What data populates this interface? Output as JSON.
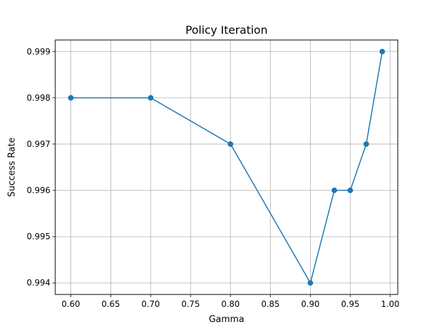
{
  "chart_data": {
    "type": "line",
    "title": "Policy Iteration",
    "xlabel": "Gamma",
    "ylabel": "Success Rate",
    "x": [
      0.6,
      0.7,
      0.8,
      0.9,
      0.93,
      0.95,
      0.97,
      0.99
    ],
    "series": [
      {
        "values": [
          0.998,
          0.998,
          0.997,
          0.994,
          0.996,
          0.996,
          0.997,
          0.999
        ]
      }
    ],
    "xlim": [
      0.5805,
      1.0095
    ],
    "ylim": [
      0.99375,
      0.99925
    ],
    "x_ticks": [
      "0.60",
      "0.65",
      "0.70",
      "0.75",
      "0.80",
      "0.85",
      "0.90",
      "0.95",
      "1.00"
    ],
    "y_ticks": [
      "0.994",
      "0.995",
      "0.996",
      "0.997",
      "0.998",
      "0.999"
    ],
    "grid": true,
    "marker": "circle",
    "colors": {
      "line": "#1f77b4",
      "grid": "#b0b0b0",
      "axes": "#000000"
    }
  }
}
